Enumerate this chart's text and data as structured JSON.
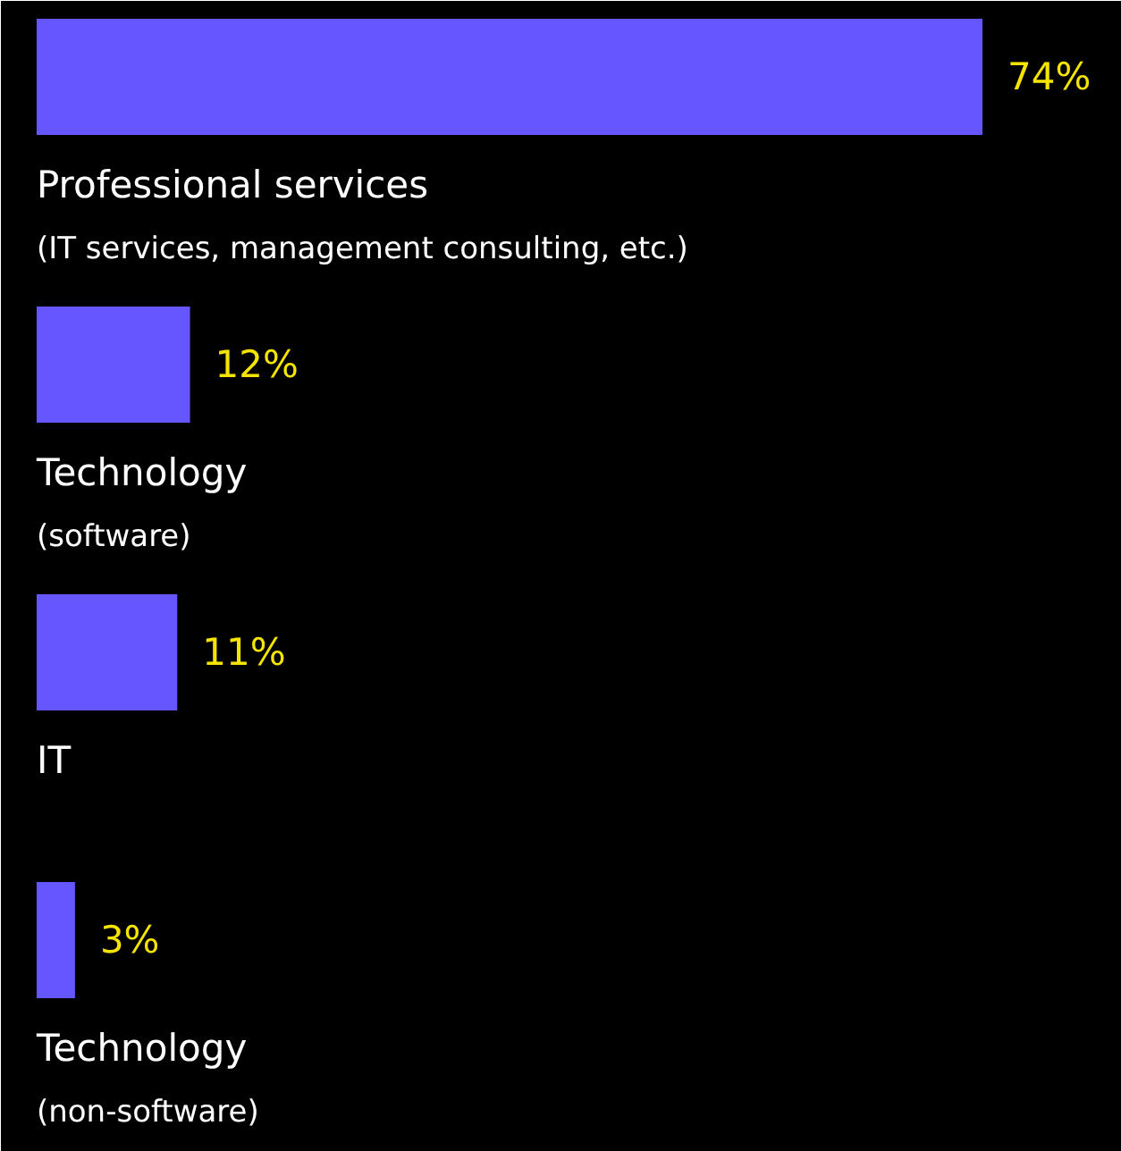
{
  "chart_data": {
    "type": "bar",
    "orientation": "horizontal",
    "data_labels": true,
    "categories": [
      "Professional services\n(IT services, management consulting, etc.)",
      "Technology\n(software)",
      "IT",
      "Technology\n(non-software)"
    ],
    "values": [
      74,
      12,
      11,
      3
    ],
    "value_labels": [
      "74%",
      "12%",
      "11%",
      "3%"
    ],
    "color": "#6656ff"
  }
}
